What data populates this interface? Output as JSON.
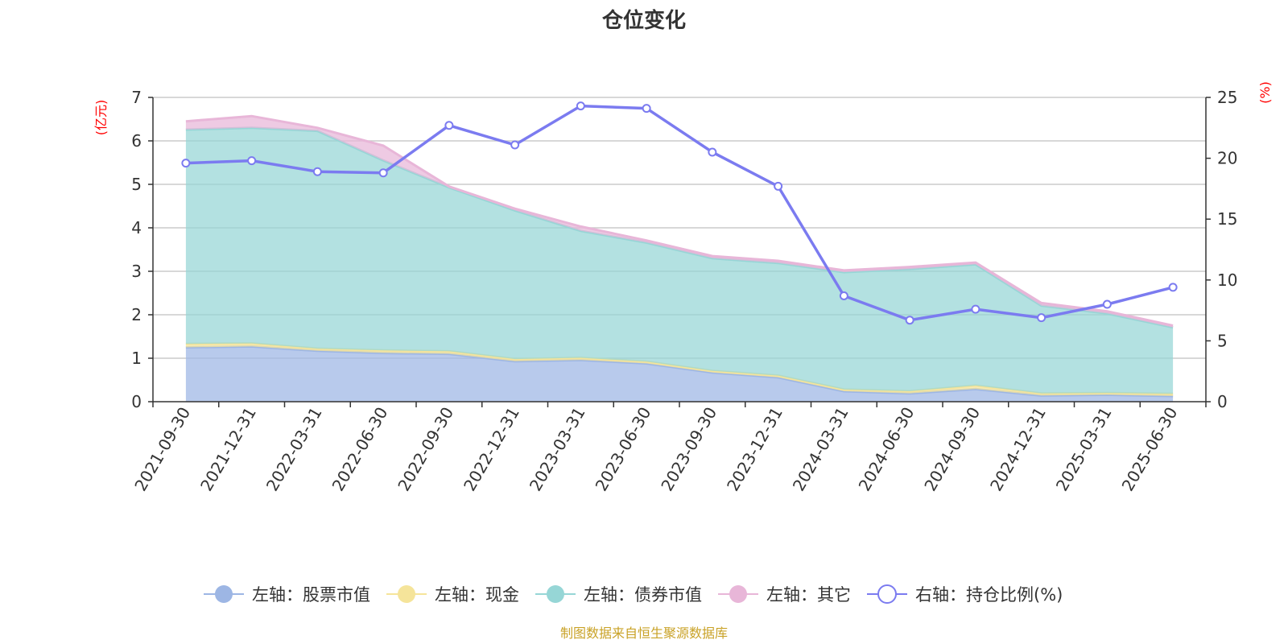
{
  "chart_data": {
    "type": "area",
    "title": "仓位变化",
    "left_axis_unit": "(亿元)",
    "right_axis_unit": "(%)",
    "ylim_left": [
      0,
      7
    ],
    "yticks_left": [
      0,
      1,
      2,
      3,
      4,
      5,
      6,
      7
    ],
    "ylim_right": [
      0,
      25
    ],
    "yticks_right": [
      0,
      5,
      10,
      15,
      20,
      25
    ],
    "grid": true,
    "legend_position": "bottom",
    "categories": [
      "2021-09-30",
      "2021-12-31",
      "2022-03-31",
      "2022-06-30",
      "2022-09-30",
      "2022-12-31",
      "2023-03-31",
      "2023-06-30",
      "2023-09-30",
      "2023-12-31",
      "2024-03-31",
      "2024-06-30",
      "2024-09-30",
      "2024-12-31",
      "2025-03-31",
      "2025-06-30"
    ],
    "series": [
      {
        "name": "左轴：股票市值",
        "axis": "left",
        "kind": "stacked-area",
        "color": "#9db6e4",
        "values": [
          1.25,
          1.27,
          1.17,
          1.12,
          1.1,
          0.93,
          0.96,
          0.88,
          0.67,
          0.56,
          0.24,
          0.19,
          0.29,
          0.14,
          0.16,
          0.13
        ]
      },
      {
        "name": "左轴：现金",
        "axis": "left",
        "kind": "stacked-area",
        "color": "#f5e49a",
        "values": [
          0.08,
          0.07,
          0.05,
          0.06,
          0.06,
          0.05,
          0.05,
          0.04,
          0.04,
          0.04,
          0.04,
          0.05,
          0.08,
          0.05,
          0.04,
          0.05
        ]
      },
      {
        "name": "左轴：债券市值",
        "axis": "left",
        "kind": "stacked-area",
        "color": "#96d6d6",
        "values": [
          4.93,
          4.96,
          5.01,
          4.37,
          3.77,
          3.42,
          2.92,
          2.74,
          2.59,
          2.59,
          2.7,
          2.81,
          2.79,
          2.02,
          1.83,
          1.53
        ]
      },
      {
        "name": "左轴：其它",
        "axis": "left",
        "kind": "stacked-area",
        "color": "#e8b6d8",
        "values": [
          0.19,
          0.27,
          0.07,
          0.34,
          0.02,
          0.04,
          0.1,
          0.05,
          0.05,
          0.05,
          0.04,
          0.05,
          0.04,
          0.06,
          0.05,
          0.04
        ]
      },
      {
        "name": "右轴：持仓比例(%)",
        "axis": "right",
        "kind": "line",
        "color": "#7b7bf0",
        "values": [
          19.6,
          19.8,
          18.9,
          18.8,
          22.7,
          21.1,
          24.3,
          24.1,
          20.5,
          17.7,
          8.7,
          6.7,
          7.6,
          6.9,
          8.0,
          9.4
        ]
      }
    ],
    "source": "制图数据来自恒生聚源数据库"
  }
}
